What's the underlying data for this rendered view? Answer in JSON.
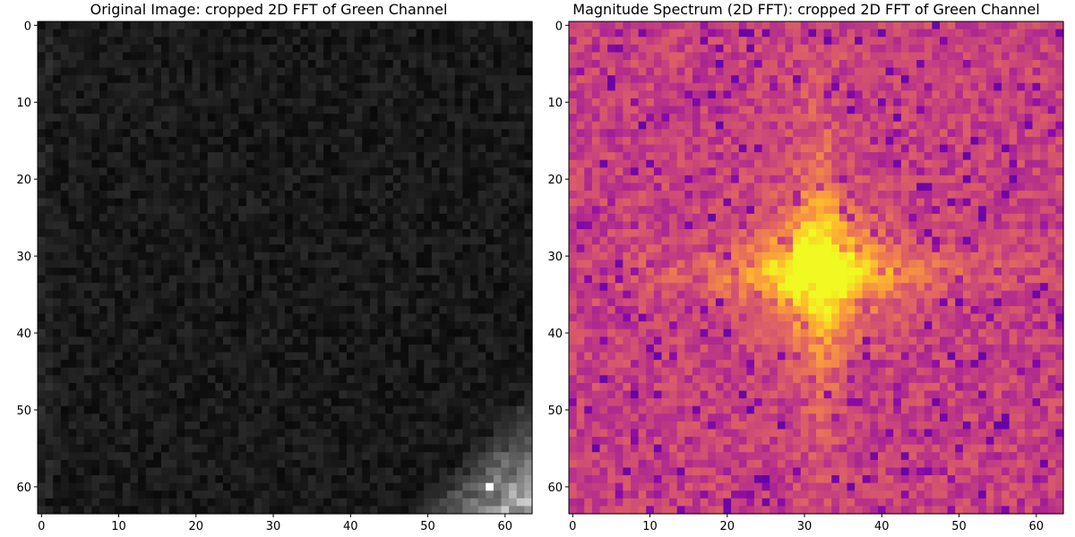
{
  "figure": {
    "panels": [
      {
        "title": "Original Image: cropped 2D FFT of Green Channel"
      },
      {
        "title": "Magnitude Spectrum (2D FFT): cropped 2D FFT of Green Channel"
      }
    ]
  },
  "chart_data": [
    {
      "type": "heatmap",
      "title": "Original Image: cropped 2D FFT of Green Channel",
      "colormap": "gray",
      "grid_size": [
        64,
        64
      ],
      "xlim": [
        0,
        63
      ],
      "ylim": [
        0,
        63
      ],
      "y_inverted": true,
      "x_ticks": [
        0,
        10,
        20,
        30,
        40,
        50,
        60
      ],
      "y_ticks": [
        0,
        10,
        20,
        30,
        40,
        50,
        60
      ],
      "grid": false,
      "description_values": {
        "background_level": 0.1,
        "bright_region": "bottom-right corner wedge",
        "peak_cell": [
          58,
          60
        ]
      }
    },
    {
      "type": "heatmap",
      "title": "Magnitude Spectrum (2D FFT): cropped 2D FFT of Green Channel",
      "colormap": "plasma",
      "grid_size": [
        64,
        64
      ],
      "xlim": [
        0,
        63
      ],
      "ylim": [
        0,
        63
      ],
      "y_inverted": true,
      "x_ticks": [
        0,
        10,
        20,
        30,
        40,
        50,
        60
      ],
      "y_ticks": [
        0,
        10,
        20,
        30,
        40,
        50,
        60
      ],
      "grid": false,
      "description_values": {
        "center_peak_cell": [
          32,
          32
        ],
        "structure": "cross-shaped bright lobe through center"
      }
    }
  ]
}
